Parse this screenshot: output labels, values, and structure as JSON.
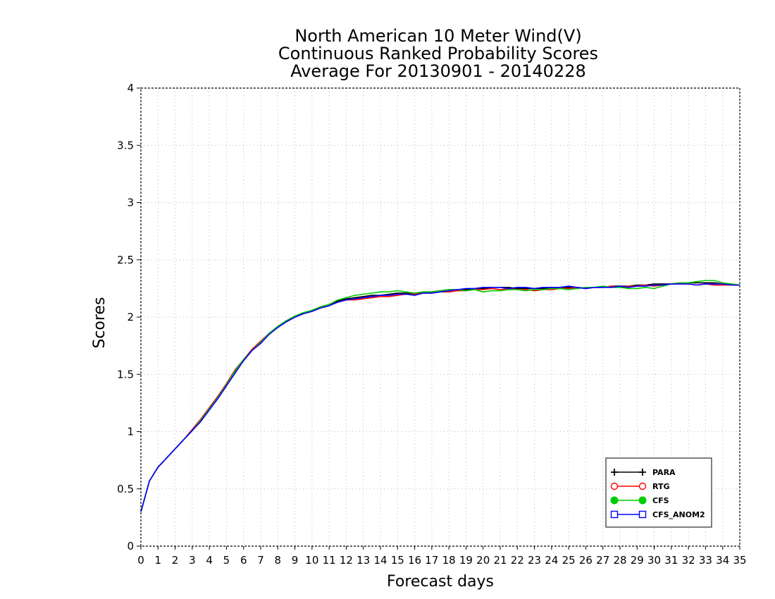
{
  "chart_data": {
    "type": "line",
    "title_lines": [
      "North American 10 Meter Wind(V)",
      "Continuous Ranked Probability Scores",
      "Average For 20130901 - 20140228"
    ],
    "xlabel": "Forecast days",
    "ylabel": "Scores",
    "xlim": [
      0,
      35
    ],
    "ylim": [
      0,
      4
    ],
    "x_ticks": [
      0,
      1,
      2,
      3,
      4,
      5,
      6,
      7,
      8,
      9,
      10,
      11,
      12,
      13,
      14,
      15,
      16,
      17,
      18,
      19,
      20,
      21,
      22,
      23,
      24,
      25,
      26,
      27,
      28,
      29,
      30,
      31,
      32,
      33,
      34,
      35
    ],
    "y_ticks": [
      {
        "value": 0,
        "label": "0"
      },
      {
        "value": 0.5,
        "label": "0.5"
      },
      {
        "value": 1,
        "label": "1"
      },
      {
        "value": 1.5,
        "label": "1.5"
      },
      {
        "value": 2,
        "label": "2"
      },
      {
        "value": 2.5,
        "label": "2.5"
      },
      {
        "value": 3,
        "label": "3"
      },
      {
        "value": 3.5,
        "label": "3.5"
      },
      {
        "value": 4,
        "label": "4"
      }
    ],
    "grid": true,
    "legend_position": "bottom-right",
    "x": [
      0,
      0.5,
      1,
      1.5,
      2,
      2.5,
      3,
      3.5,
      4,
      4.5,
      5,
      5.5,
      6,
      6.5,
      7,
      7.5,
      8,
      8.5,
      9,
      9.5,
      10,
      10.5,
      11,
      11.5,
      12,
      12.5,
      13,
      13.5,
      14,
      14.5,
      15,
      15.5,
      16,
      16.5,
      17,
      17.5,
      18,
      18.5,
      19,
      19.5,
      20,
      20.5,
      21,
      21.5,
      22,
      22.5,
      23,
      23.5,
      24,
      24.5,
      25,
      25.5,
      26,
      26.5,
      27,
      27.5,
      28,
      28.5,
      29,
      29.5,
      30,
      30.5,
      31,
      31.5,
      32,
      32.5,
      33,
      33.5,
      34,
      34.5,
      35
    ],
    "series": [
      {
        "name": "PARA",
        "color": "#000000",
        "marker": "plus",
        "values": [
          0.3,
          0.57,
          0.69,
          0.77,
          0.85,
          0.93,
          1.01,
          1.09,
          1.19,
          1.29,
          1.4,
          1.52,
          1.62,
          1.71,
          1.78,
          1.86,
          1.91,
          1.96,
          2.0,
          2.03,
          2.06,
          2.09,
          2.11,
          2.14,
          2.16,
          2.17,
          2.18,
          2.19,
          2.19,
          2.2,
          2.21,
          2.21,
          2.2,
          2.22,
          2.22,
          2.23,
          2.24,
          2.24,
          2.24,
          2.25,
          2.25,
          2.26,
          2.26,
          2.26,
          2.25,
          2.25,
          2.25,
          2.25,
          2.25,
          2.26,
          2.26,
          2.26,
          2.25,
          2.26,
          2.26,
          2.27,
          2.27,
          2.27,
          2.28,
          2.28,
          2.29,
          2.29,
          2.29,
          2.3,
          2.3,
          2.3,
          2.3,
          2.3,
          2.29,
          2.29,
          2.28
        ]
      },
      {
        "name": "RTG",
        "color": "#ff0000",
        "marker": "circle-open",
        "values": [
          0.3,
          0.57,
          0.69,
          0.77,
          0.85,
          0.93,
          1.02,
          1.11,
          1.21,
          1.31,
          1.42,
          1.54,
          1.63,
          1.72,
          1.79,
          1.86,
          1.91,
          1.96,
          2.0,
          2.03,
          2.05,
          2.08,
          2.1,
          2.13,
          2.15,
          2.15,
          2.16,
          2.17,
          2.18,
          2.18,
          2.19,
          2.2,
          2.2,
          2.21,
          2.21,
          2.22,
          2.22,
          2.23,
          2.23,
          2.24,
          2.24,
          2.25,
          2.24,
          2.25,
          2.24,
          2.24,
          2.23,
          2.24,
          2.24,
          2.25,
          2.25,
          2.26,
          2.25,
          2.26,
          2.26,
          2.27,
          2.26,
          2.27,
          2.27,
          2.28,
          2.27,
          2.28,
          2.29,
          2.29,
          2.29,
          2.28,
          2.29,
          2.28,
          2.28,
          2.28,
          2.28
        ]
      },
      {
        "name": "CFS",
        "color": "#00cc00",
        "marker": "circle-filled",
        "values": [
          0.3,
          0.57,
          0.69,
          0.77,
          0.85,
          0.93,
          1.01,
          1.1,
          1.2,
          1.3,
          1.41,
          1.53,
          1.63,
          1.71,
          1.78,
          1.86,
          1.92,
          1.97,
          2.01,
          2.04,
          2.06,
          2.09,
          2.11,
          2.15,
          2.17,
          2.19,
          2.2,
          2.21,
          2.22,
          2.22,
          2.23,
          2.22,
          2.21,
          2.22,
          2.22,
          2.23,
          2.24,
          2.24,
          2.23,
          2.24,
          2.22,
          2.23,
          2.23,
          2.24,
          2.24,
          2.23,
          2.24,
          2.24,
          2.25,
          2.25,
          2.24,
          2.25,
          2.26,
          2.26,
          2.27,
          2.26,
          2.26,
          2.25,
          2.25,
          2.26,
          2.25,
          2.27,
          2.29,
          2.3,
          2.3,
          2.31,
          2.32,
          2.32,
          2.3,
          2.29,
          2.28
        ]
      },
      {
        "name": "CFS_ANOM2",
        "color": "#0000ff",
        "marker": "square-open",
        "values": [
          0.3,
          0.57,
          0.69,
          0.77,
          0.85,
          0.93,
          1.01,
          1.09,
          1.19,
          1.29,
          1.4,
          1.51,
          1.62,
          1.71,
          1.77,
          1.85,
          1.91,
          1.96,
          2.0,
          2.03,
          2.05,
          2.08,
          2.1,
          2.13,
          2.15,
          2.16,
          2.17,
          2.18,
          2.19,
          2.19,
          2.2,
          2.2,
          2.19,
          2.21,
          2.21,
          2.22,
          2.23,
          2.24,
          2.25,
          2.25,
          2.26,
          2.26,
          2.26,
          2.25,
          2.26,
          2.26,
          2.25,
          2.26,
          2.26,
          2.26,
          2.27,
          2.26,
          2.25,
          2.26,
          2.26,
          2.26,
          2.27,
          2.26,
          2.27,
          2.27,
          2.28,
          2.28,
          2.29,
          2.29,
          2.29,
          2.28,
          2.29,
          2.29,
          2.29,
          2.28,
          2.28
        ]
      }
    ]
  }
}
